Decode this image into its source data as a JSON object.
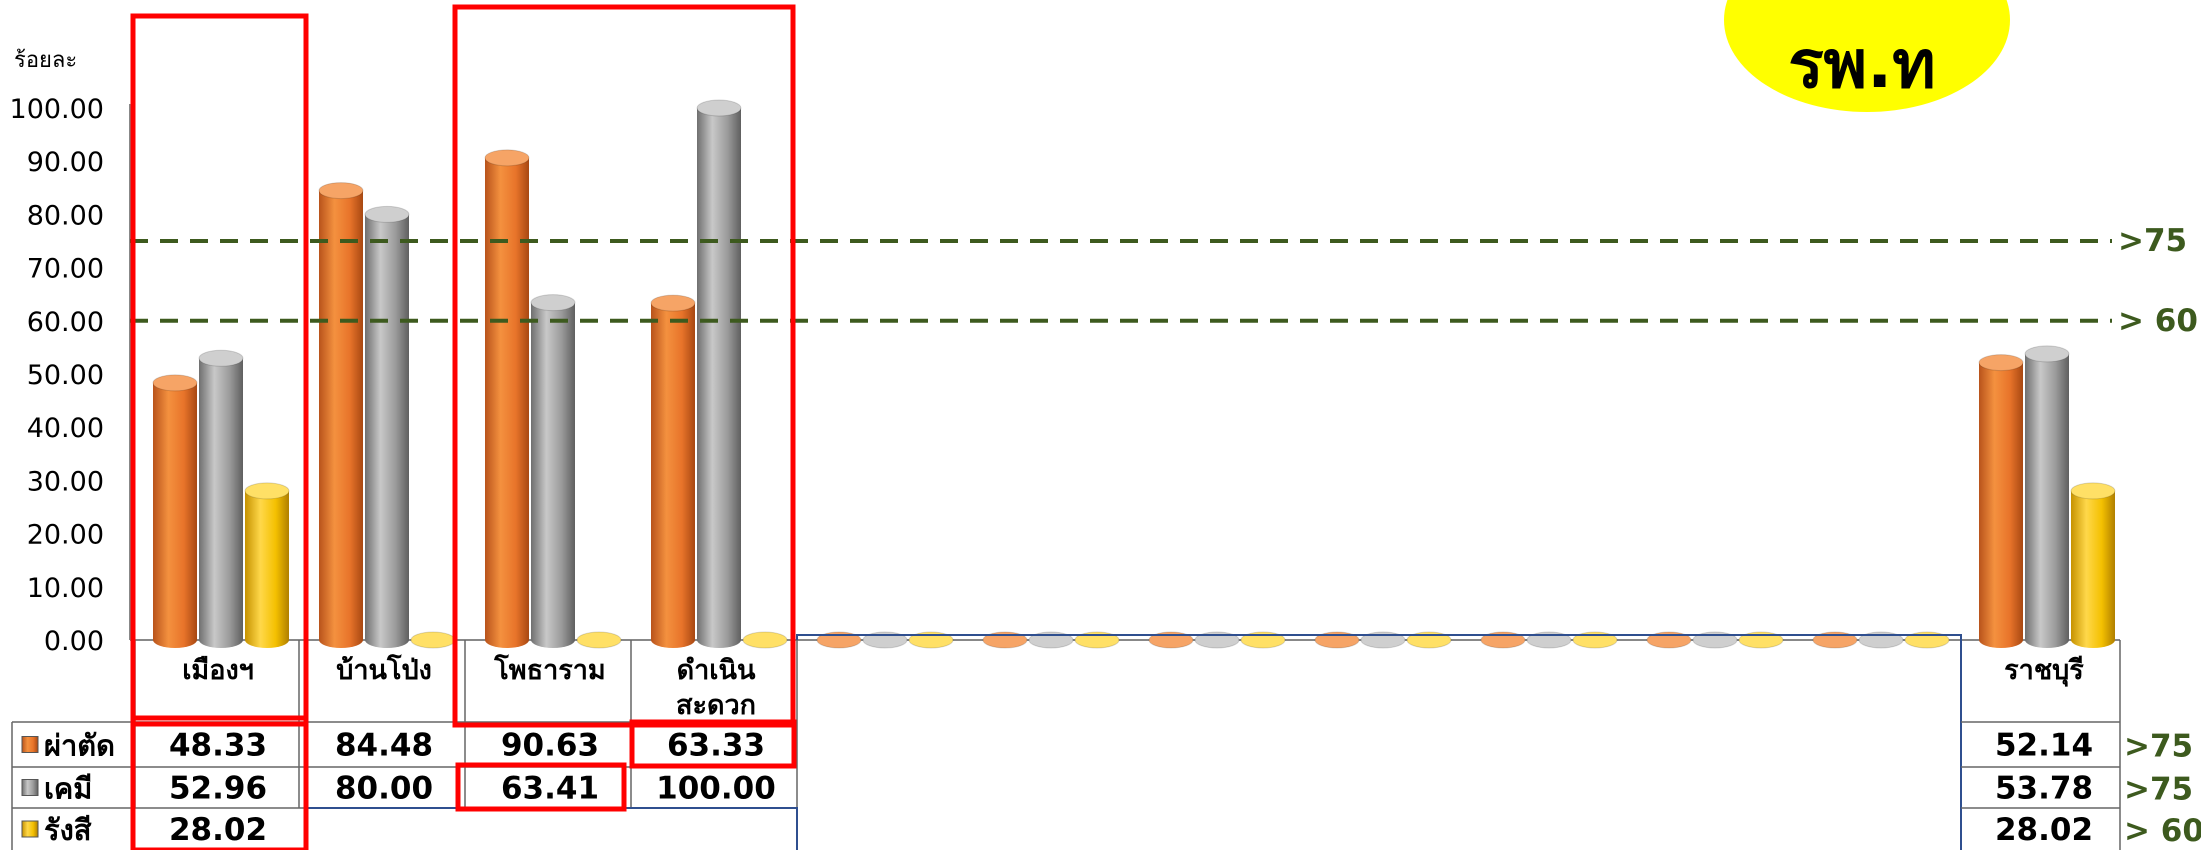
{
  "chart_data": {
    "type": "bar",
    "ylabel": "ร้อยละ",
    "ylim": [
      0,
      100
    ],
    "y_ticks": [
      "0.00",
      "10.00",
      "20.00",
      "30.00",
      "40.00",
      "50.00",
      "60.00",
      "70.00",
      "80.00",
      "90.00",
      "100.00"
    ],
    "categories": [
      "เมืองฯ",
      "บ้านโป่ง",
      "โพธาราม",
      "ดำเนินสะดวก",
      "",
      "",
      "",
      "",
      "",
      "",
      "",
      "ราชบุรี"
    ],
    "category_lines": [
      [
        "เมืองฯ"
      ],
      [
        "บ้านโป่ง"
      ],
      [
        "โพธาราม"
      ],
      [
        "ดำเนิน",
        "สะดวก"
      ],
      [],
      [],
      [],
      [],
      [],
      [],
      [],
      [
        "ราชบุรี"
      ]
    ],
    "series": [
      {
        "name": "ผ่าตัด",
        "color": "#e8742a",
        "values": [
          48.33,
          84.48,
          90.63,
          63.33,
          0,
          0,
          0,
          0,
          0,
          0,
          0,
          52.14
        ]
      },
      {
        "name": "เคมี",
        "color": "#9a9a9a",
        "values": [
          52.96,
          80.0,
          63.41,
          100.0,
          0,
          0,
          0,
          0,
          0,
          0,
          0,
          53.78
        ]
      },
      {
        "name": "รังสี",
        "color": "#f4c000",
        "values": [
          28.02,
          0,
          0,
          0,
          0,
          0,
          0,
          0,
          0,
          0,
          0,
          28.02
        ]
      }
    ],
    "table_values": {
      "ผ่าตัด": [
        "48.33",
        "84.48",
        "90.63",
        "63.33",
        "",
        "",
        "",
        "",
        "",
        "",
        "",
        "52.14"
      ],
      "เคมี": [
        "52.96",
        "80.00",
        "63.41",
        "100.00",
        "",
        "",
        "",
        "",
        "",
        "",
        "",
        "53.78"
      ],
      "รังสี": [
        "28.02",
        "",
        "",
        "",
        "",
        "",
        "",
        "",
        "",
        "",
        "",
        "28.02"
      ]
    },
    "target_lines": [
      {
        "value": 75,
        "label": ">75"
      },
      {
        "value": 60,
        "label": "> 60"
      }
    ],
    "row_targets": [
      ">75",
      ">75",
      "> 60"
    ],
    "badge_text": "รพ.ท",
    "colors": {
      "target": "#3d5a1e",
      "highlight": "#ff0000",
      "badge": "#ffff00",
      "grid_border": "#2f4f8f"
    }
  }
}
